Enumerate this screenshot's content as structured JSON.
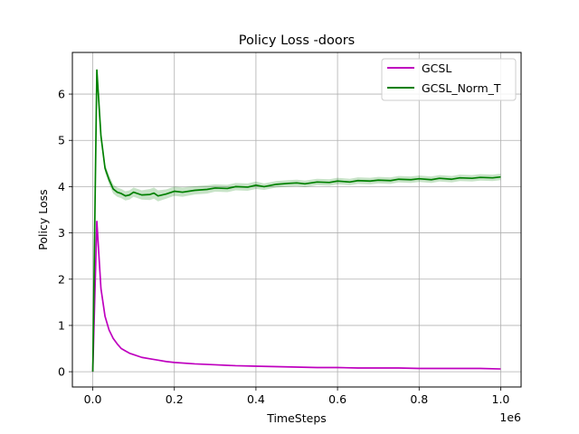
{
  "chart_data": {
    "type": "line",
    "title": "Policy Loss -doors",
    "xlabel": "TimeSteps",
    "ylabel": "Policy Loss",
    "x_offset_label": "1e6",
    "xlim": [
      -0.05,
      1.05
    ],
    "ylim": [
      -0.33,
      6.9
    ],
    "x_ticks": [
      0,
      0.2,
      0.4,
      0.6,
      0.8,
      1.0
    ],
    "x_tick_labels": [
      "0.0",
      "0.2",
      "0.4",
      "0.6",
      "0.8",
      "1.0"
    ],
    "y_ticks": [
      0,
      1,
      2,
      3,
      4,
      5,
      6
    ],
    "y_tick_labels": [
      "0",
      "1",
      "2",
      "3",
      "4",
      "5",
      "6"
    ],
    "grid": true,
    "legend_position": "top-right",
    "series": [
      {
        "name": "GCSL",
        "color": "#bf00bf",
        "x": [
          0,
          0.01,
          0.02,
          0.03,
          0.04,
          0.05,
          0.06,
          0.07,
          0.08,
          0.09,
          0.1,
          0.12,
          0.14,
          0.16,
          0.18,
          0.2,
          0.25,
          0.3,
          0.35,
          0.4,
          0.45,
          0.5,
          0.55,
          0.6,
          0.65,
          0.7,
          0.75,
          0.8,
          0.85,
          0.9,
          0.95,
          1.0
        ],
        "y": [
          0.0,
          3.25,
          1.8,
          1.2,
          0.9,
          0.72,
          0.6,
          0.5,
          0.45,
          0.4,
          0.37,
          0.31,
          0.28,
          0.25,
          0.22,
          0.2,
          0.17,
          0.15,
          0.13,
          0.12,
          0.11,
          0.1,
          0.09,
          0.09,
          0.08,
          0.08,
          0.08,
          0.07,
          0.07,
          0.07,
          0.07,
          0.06
        ]
      },
      {
        "name": "GCSL_Norm_T",
        "color": "#008000",
        "band_color": "#008000",
        "x": [
          0,
          0.01,
          0.02,
          0.03,
          0.04,
          0.05,
          0.06,
          0.07,
          0.08,
          0.09,
          0.1,
          0.12,
          0.14,
          0.15,
          0.16,
          0.18,
          0.2,
          0.22,
          0.25,
          0.28,
          0.3,
          0.33,
          0.35,
          0.38,
          0.4,
          0.42,
          0.45,
          0.48,
          0.5,
          0.52,
          0.55,
          0.58,
          0.6,
          0.63,
          0.65,
          0.68,
          0.7,
          0.73,
          0.75,
          0.78,
          0.8,
          0.83,
          0.85,
          0.88,
          0.9,
          0.93,
          0.95,
          0.98,
          1.0
        ],
        "y": [
          0.0,
          6.52,
          5.1,
          4.4,
          4.15,
          3.95,
          3.88,
          3.85,
          3.8,
          3.82,
          3.88,
          3.82,
          3.83,
          3.86,
          3.8,
          3.84,
          3.9,
          3.88,
          3.92,
          3.94,
          3.97,
          3.96,
          4.0,
          3.99,
          4.03,
          4.0,
          4.05,
          4.07,
          4.08,
          4.06,
          4.1,
          4.09,
          4.12,
          4.1,
          4.13,
          4.12,
          4.14,
          4.13,
          4.16,
          4.15,
          4.17,
          4.15,
          4.18,
          4.16,
          4.19,
          4.18,
          4.2,
          4.19,
          4.21
        ],
        "band": [
          0,
          0.06,
          0.09,
          0.09,
          0.1,
          0.1,
          0.1,
          0.1,
          0.1,
          0.1,
          0.1,
          0.1,
          0.12,
          0.12,
          0.12,
          0.1,
          0.1,
          0.1,
          0.09,
          0.09,
          0.08,
          0.08,
          0.08,
          0.08,
          0.08,
          0.07,
          0.07,
          0.07,
          0.07,
          0.07,
          0.07,
          0.07,
          0.07,
          0.07,
          0.07,
          0.07,
          0.07,
          0.07,
          0.07,
          0.07,
          0.07,
          0.07,
          0.07,
          0.07,
          0.07,
          0.07,
          0.07,
          0.07,
          0.07
        ]
      }
    ]
  }
}
